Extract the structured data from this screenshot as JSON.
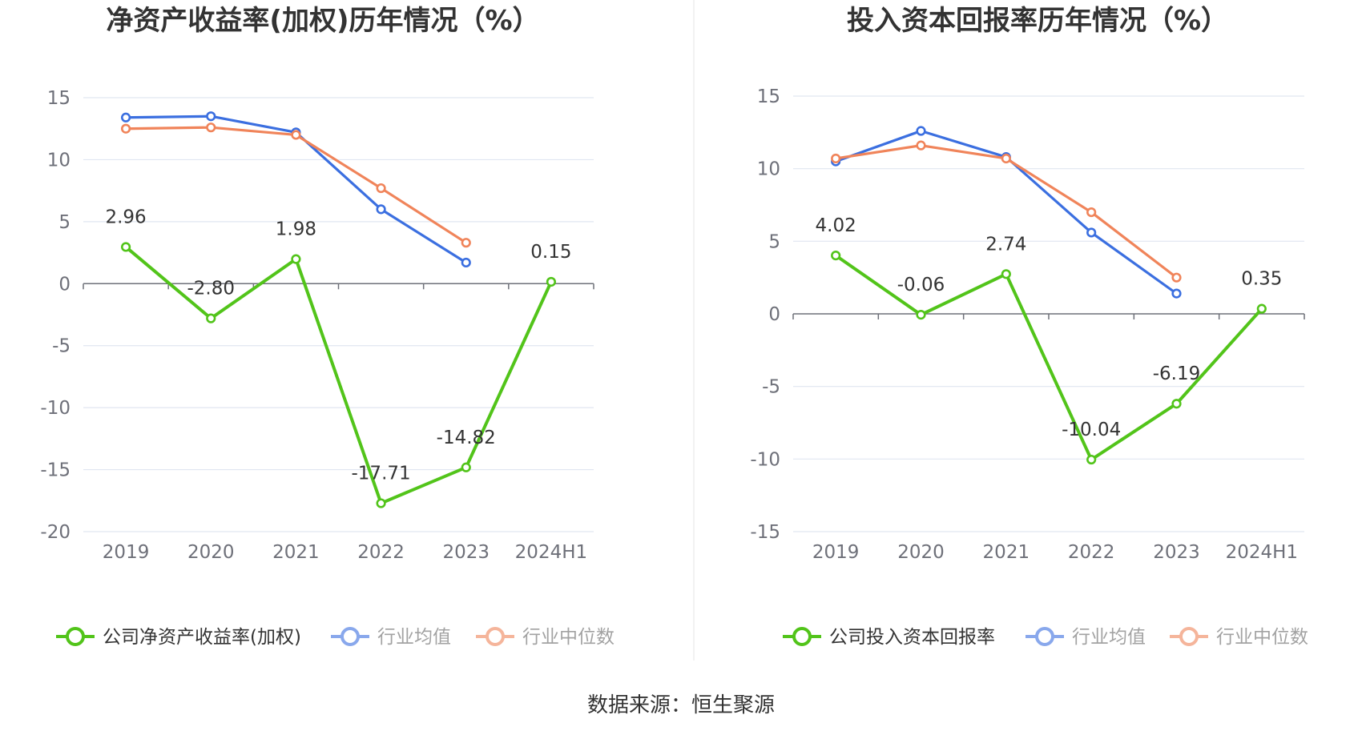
{
  "source": "数据来源：恒生聚源",
  "colors": {
    "company": "#52c41a",
    "average": "#3b6fe0",
    "median": "#f0845a",
    "grid": "#e0e6f1",
    "axis": "#6e7079",
    "divider": "#eeeeee"
  },
  "chart_data": [
    {
      "type": "line",
      "title": "净资产收益率(加权)历年情况（%）",
      "categories": [
        "2019",
        "2020",
        "2021",
        "2022",
        "2023",
        "2024H1"
      ],
      "ylim": [
        -20,
        15
      ],
      "yticks": [
        15,
        10,
        5,
        0,
        -5,
        -10,
        -15,
        -20
      ],
      "grid": true,
      "legend_position": "bottom",
      "series": [
        {
          "name": "公司净资产收益率(加权)",
          "color_key": "company",
          "labeled": true,
          "values": [
            2.96,
            -2.8,
            1.98,
            -17.71,
            -14.82,
            0.15
          ],
          "labels": [
            "2.96",
            "-2.80",
            "1.98",
            "-17.71",
            "-14.82",
            "0.15"
          ]
        },
        {
          "name": "行业均值",
          "color_key": "average",
          "labeled": false,
          "values": [
            13.4,
            13.5,
            12.2,
            6.0,
            1.7,
            null
          ]
        },
        {
          "name": "行业中位数",
          "color_key": "median",
          "labeled": false,
          "values": [
            12.5,
            12.6,
            12.0,
            7.7,
            3.3,
            null
          ]
        }
      ]
    },
    {
      "type": "line",
      "title": "投入资本回报率历年情况（%）",
      "categories": [
        "2019",
        "2020",
        "2021",
        "2022",
        "2023",
        "2024H1"
      ],
      "ylim": [
        -15,
        15
      ],
      "yticks": [
        15,
        10,
        5,
        0,
        -5,
        -10,
        -15
      ],
      "grid": true,
      "legend_position": "bottom",
      "series": [
        {
          "name": "公司投入资本回报率",
          "color_key": "company",
          "labeled": true,
          "values": [
            4.02,
            -0.06,
            2.74,
            -10.04,
            -6.19,
            0.35
          ],
          "labels": [
            "4.02",
            "-0.06",
            "2.74",
            "-10.04",
            "-6.19",
            "0.35"
          ]
        },
        {
          "name": "行业均值",
          "color_key": "average",
          "labeled": false,
          "values": [
            10.5,
            12.6,
            10.8,
            5.6,
            1.4,
            null
          ]
        },
        {
          "name": "行业中位数",
          "color_key": "median",
          "labeled": false,
          "values": [
            10.7,
            11.6,
            10.7,
            7.0,
            2.5,
            null
          ]
        }
      ]
    }
  ]
}
